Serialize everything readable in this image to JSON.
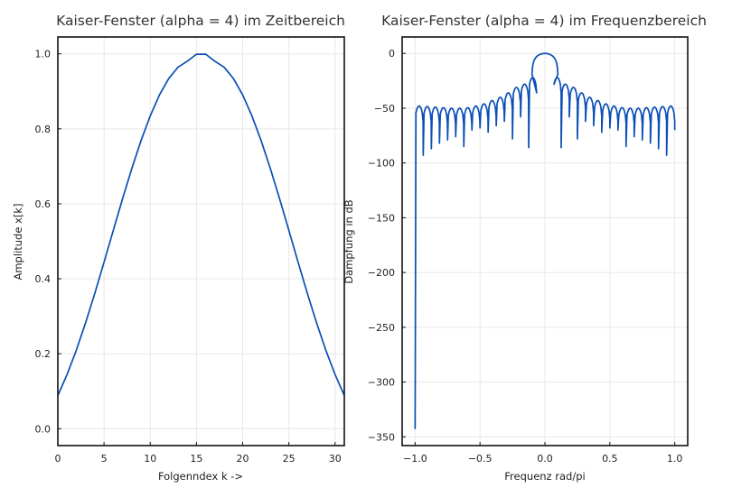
{
  "chart_data": [
    {
      "type": "line",
      "title": "Kaiser-Fenster (alpha = 4) im Zeitbereich",
      "xlabel": "Folgenndex k ->",
      "ylabel": "Amplitude x[k]",
      "xlim": [
        0,
        31
      ],
      "ylim": [
        -0.045,
        1.045
      ],
      "xticks": [
        0,
        5,
        10,
        15,
        20,
        25,
        30
      ],
      "xtick_labels": [
        "0",
        "5",
        "10",
        "15",
        "20",
        "25",
        "30"
      ],
      "yticks": [
        0.0,
        0.2,
        0.4,
        0.6,
        0.8,
        1.0
      ],
      "ytick_labels": [
        "0.0",
        "0.2",
        "0.4",
        "0.6",
        "0.8",
        "1.0"
      ],
      "grid": true,
      "series": [
        {
          "color": "#0a4fb5",
          "x": [
            0,
            1,
            2,
            3,
            4,
            5,
            6,
            7,
            8,
            9,
            10,
            11,
            12,
            13,
            14,
            15,
            16,
            17,
            18,
            19,
            20,
            21,
            22,
            23,
            24,
            25,
            26,
            27,
            28,
            29,
            30,
            31
          ],
          "y": [
            0.0885,
            0.1446,
            0.2094,
            0.2822,
            0.3611,
            0.4442,
            0.529,
            0.613,
            0.6937,
            0.7684,
            0.8347,
            0.8906,
            0.9342,
            0.9643,
            0.9801,
            0.999,
            0.999,
            0.9801,
            0.9643,
            0.9342,
            0.8906,
            0.8347,
            0.7684,
            0.6937,
            0.613,
            0.529,
            0.4442,
            0.3611,
            0.2822,
            0.2094,
            0.1446,
            0.0885
          ]
        }
      ]
    },
    {
      "type": "line",
      "title": "Kaiser-Fenster (alpha = 4) im Frequenzbereich",
      "xlabel": "Frequenz rad/pi",
      "ylabel": "Dämpfung in dB",
      "xlim": [
        -1.1,
        1.1
      ],
      "ylim": [
        -358,
        15
      ],
      "xticks": [
        -1.0,
        -0.5,
        0.0,
        0.5,
        1.0
      ],
      "xtick_labels": [
        "−1.0",
        "−0.5",
        "0.0",
        "0.5",
        "1.0"
      ],
      "yticks": [
        0,
        -50,
        -100,
        -150,
        -200,
        -250,
        -300,
        -350
      ],
      "ytick_labels": [
        "0",
        "−50",
        "−100",
        "−150",
        "−200",
        "−250",
        "−300",
        "−350"
      ],
      "grid": true,
      "series": [
        {
          "color": "#0a4fb5",
          "mainlobe_halfwidth": 0.1,
          "sidelobe_spacing": 0.0625,
          "x_start": -1.0,
          "x_end": 1.0,
          "edge_min": -343,
          "sidelobe_peaks": [
            -48,
            -48.5,
            -49,
            -49.5,
            -50,
            -50,
            -49.5,
            -48,
            -46,
            -43,
            -40,
            -36,
            -31,
            -28,
            -22
          ],
          "null_depths": [
            -93,
            -87,
            -82,
            -79,
            -76,
            -85,
            -70,
            -68,
            -72,
            -66,
            -62,
            -78,
            -58,
            -86,
            -70
          ]
        }
      ]
    }
  ]
}
